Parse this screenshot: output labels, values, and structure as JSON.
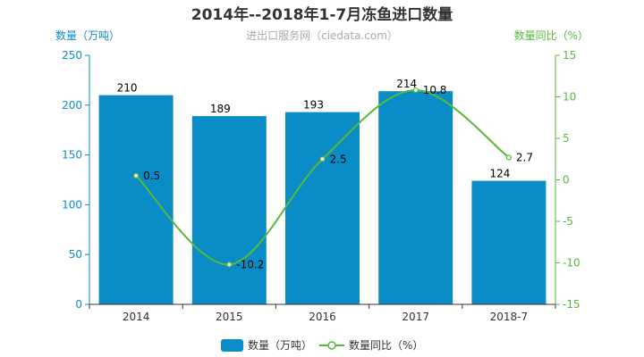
{
  "chart_data": {
    "type": "bar",
    "title": "2014年--2018年1-7月冻鱼进口数量",
    "subtitle": "进出口服务网（ciedata.com）",
    "categories": [
      "2014",
      "2015",
      "2016",
      "2017",
      "2018-7"
    ],
    "series": [
      {
        "name": "数量（万吨）",
        "type": "bar",
        "axis": "left",
        "color": "#0a8dc7",
        "values": [
          210,
          189,
          193,
          214,
          124
        ]
      },
      {
        "name": "数量同比（%）",
        "type": "line",
        "axis": "right",
        "color": "#58b93a",
        "values": [
          0.5,
          -10.2,
          2.5,
          10.8,
          2.7
        ]
      }
    ],
    "y_left": {
      "label": "数量（万吨）",
      "range": [
        0,
        250
      ],
      "ticks": [
        "0",
        "50",
        "100",
        "150",
        "200",
        "250"
      ],
      "color": "#0a8dc7"
    },
    "y_right": {
      "label": "数量同比（%）",
      "range": [
        -15,
        15
      ],
      "ticks": [
        "-15",
        "-10",
        "-5",
        "0",
        "5",
        "10",
        "15"
      ],
      "color": "#58b93a"
    },
    "grid": false,
    "legend_position": "bottom"
  }
}
